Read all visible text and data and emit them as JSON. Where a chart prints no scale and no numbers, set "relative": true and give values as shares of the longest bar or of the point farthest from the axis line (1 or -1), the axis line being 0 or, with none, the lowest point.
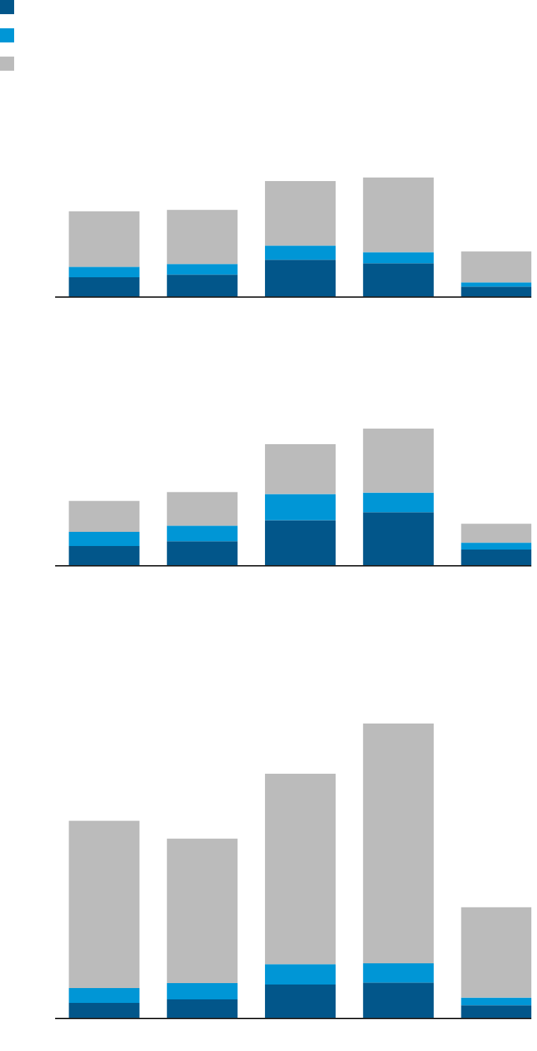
{
  "chart_data": [
    {
      "type": "bar",
      "relative": true,
      "stacked": true,
      "categories": [
        null,
        null,
        null,
        null,
        null
      ],
      "series": [
        {
          "color": "#02568a",
          "values": [
            0.165,
            0.188,
            0.312,
            0.282,
            0.088
          ]
        },
        {
          "color": "#0096d6",
          "values": [
            0.088,
            0.088,
            0.118,
            0.094,
            0.035
          ]
        },
        {
          "color": "#bbbbbb",
          "values": [
            0.465,
            0.453,
            0.541,
            0.624,
            0.259
          ]
        }
      ]
    },
    {
      "type": "bar",
      "relative": true,
      "stacked": true,
      "categories": [
        null,
        null,
        null,
        null,
        null
      ],
      "series": [
        {
          "color": "#02568a",
          "values": [
            0.144,
            0.179,
            0.333,
            0.39,
            0.118
          ]
        },
        {
          "color": "#0096d6",
          "values": [
            0.103,
            0.113,
            0.19,
            0.144,
            0.051
          ]
        },
        {
          "color": "#bbbbbb",
          "values": [
            0.226,
            0.246,
            0.364,
            0.466,
            0.138
          ]
        }
      ]
    },
    {
      "type": "bar",
      "relative": true,
      "stacked": true,
      "categories": [
        null,
        null,
        null,
        null,
        null
      ],
      "series": [
        {
          "color": "#02568a",
          "values": [
            0.053,
            0.065,
            0.115,
            0.122,
            0.045
          ]
        },
        {
          "color": "#0096d6",
          "values": [
            0.05,
            0.055,
            0.069,
            0.065,
            0.026
          ]
        },
        {
          "color": "#bbbbbb",
          "values": [
            0.567,
            0.49,
            0.646,
            0.813,
            0.306
          ]
        }
      ]
    }
  ]
}
